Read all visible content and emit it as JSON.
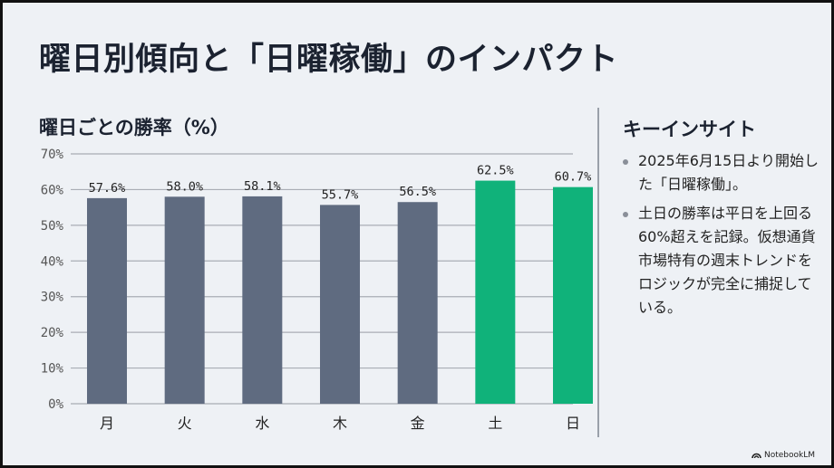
{
  "title": "曜日別傾向と「日曜稼働」のインパクト",
  "chart_data": {
    "type": "bar",
    "title": "曜日ごとの勝率（%）",
    "categories": [
      "月",
      "火",
      "水",
      "木",
      "金",
      "土",
      "日"
    ],
    "values": [
      57.6,
      58.0,
      58.1,
      55.7,
      56.5,
      62.5,
      60.7
    ],
    "value_labels": [
      "57.6%",
      "58.0%",
      "58.1%",
      "55.7%",
      "56.5%",
      "62.5%",
      "60.7%"
    ],
    "highlight": [
      false,
      false,
      false,
      false,
      false,
      true,
      true
    ],
    "ylim": [
      0,
      70
    ],
    "yticks": [
      0,
      10,
      20,
      30,
      40,
      50,
      60,
      70
    ],
    "ytick_labels": [
      "0%",
      "10%",
      "20%",
      "30%",
      "40%",
      "50%",
      "60%",
      "70%"
    ],
    "grid": true,
    "xlabel": "",
    "ylabel": "",
    "colors": {
      "default": "#5f6b80",
      "highlight": "#10b27a"
    }
  },
  "insights": {
    "title": "キーインサイト",
    "items": [
      "2025年6月15日より開始した「日曜稼働」。",
      "土日の勝率は平日を上回る60%超えを記録。仮想通貨市場特有の週末トレンドをロジックが完全に捕捉している。"
    ]
  },
  "brand": "NotebookLM"
}
